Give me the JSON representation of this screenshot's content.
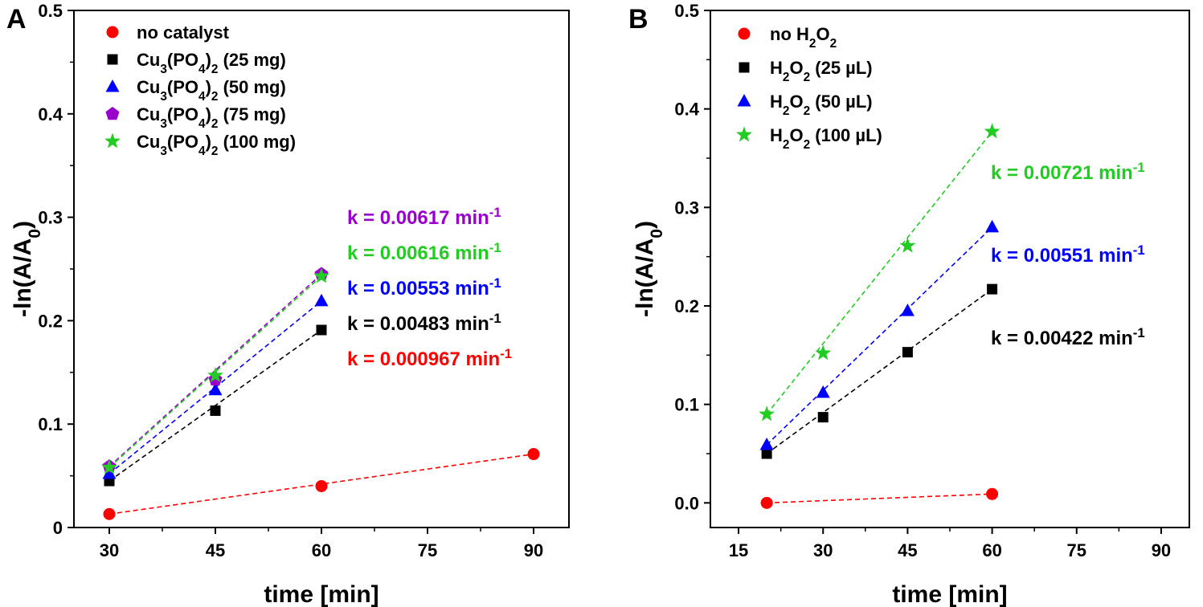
{
  "chart_data": [
    {
      "type": "scatter",
      "panel_label": "A",
      "xlabel": "time [min]",
      "ylabel": "-ln(A/A",
      "ylabel_sub": "0",
      "ylabel_end": ")",
      "xlim": [
        25,
        95
      ],
      "ylim": [
        0,
        0.5
      ],
      "xticks": [
        30,
        45,
        60,
        75,
        90
      ],
      "xtick_labels": [
        "30",
        "45",
        "60",
        "75",
        "90"
      ],
      "yticks": [
        0,
        0.1,
        0.2,
        0.3,
        0.4,
        0.5
      ],
      "ytick_labels": [
        "0",
        "0.1",
        "0.2",
        "0.3",
        "0.4",
        "0.5"
      ],
      "legend_position": "top-left",
      "series": [
        {
          "name": "no catalyst",
          "legend": [
            {
              "t": "no catalyst",
              "sub": false
            }
          ],
          "marker": "circle",
          "color": "#ff0000",
          "x": [
            30,
            60,
            90
          ],
          "y": [
            0.013,
            0.04,
            0.071
          ],
          "fit_x": [
            30,
            90
          ],
          "fit_y": [
            0.013,
            0.071
          ],
          "k_parts": [
            "k = 0.000967 min",
            "-1"
          ]
        },
        {
          "name": "Cu3(PO4)2 (25 mg)",
          "legend": [
            {
              "t": "Cu",
              "sub": false
            },
            {
              "t": "3",
              "sub": true
            },
            {
              "t": "(PO",
              "sub": false
            },
            {
              "t": "4",
              "sub": true
            },
            {
              "t": ")",
              "sub": false
            },
            {
              "t": "2",
              "sub": true
            },
            {
              "t": " (25 mg)",
              "sub": false
            }
          ],
          "marker": "square",
          "color": "#000000",
          "x": [
            30,
            45,
            60
          ],
          "y": [
            0.045,
            0.113,
            0.191
          ],
          "fit_x": [
            30,
            60
          ],
          "fit_y": [
            0.045,
            0.191
          ],
          "k_parts": [
            "k = 0.00483 min",
            "-1"
          ]
        },
        {
          "name": "Cu3(PO4)2 (50 mg)",
          "legend": [
            {
              "t": "Cu",
              "sub": false
            },
            {
              "t": "3",
              "sub": true
            },
            {
              "t": "(PO",
              "sub": false
            },
            {
              "t": "4",
              "sub": true
            },
            {
              "t": ")",
              "sub": false
            },
            {
              "t": "2",
              "sub": true
            },
            {
              "t": " (50 mg)",
              "sub": false
            }
          ],
          "marker": "triangle",
          "color": "#0000ff",
          "x": [
            30,
            45,
            60
          ],
          "y": [
            0.052,
            0.133,
            0.219
          ],
          "fit_x": [
            30,
            60
          ],
          "fit_y": [
            0.052,
            0.219
          ],
          "k_parts": [
            "k = 0.00553 min",
            "-1"
          ]
        },
        {
          "name": "Cu3(PO4)2 (75 mg)",
          "legend": [
            {
              "t": "Cu",
              "sub": false
            },
            {
              "t": "3",
              "sub": true
            },
            {
              "t": "(PO",
              "sub": false
            },
            {
              "t": "4",
              "sub": true
            },
            {
              "t": ")",
              "sub": false
            },
            {
              "t": "2",
              "sub": true
            },
            {
              "t": " (75 mg)",
              "sub": false
            }
          ],
          "marker": "pentagon",
          "color": "#9900cc",
          "x": [
            30,
            45,
            60
          ],
          "y": [
            0.059,
            0.143,
            0.245
          ],
          "fit_x": [
            30,
            60
          ],
          "fit_y": [
            0.059,
            0.245
          ],
          "k_parts": [
            "k = 0.00617 min",
            "-1"
          ]
        },
        {
          "name": "Cu3(PO4)2 (100 mg)",
          "legend": [
            {
              "t": "Cu",
              "sub": false
            },
            {
              "t": "3",
              "sub": true
            },
            {
              "t": "(PO",
              "sub": false
            },
            {
              "t": "4",
              "sub": true
            },
            {
              "t": ")",
              "sub": false
            },
            {
              "t": "2",
              "sub": true
            },
            {
              "t": " (100 mg)",
              "sub": false
            }
          ],
          "marker": "star",
          "color": "#22cc22",
          "x": [
            30,
            45,
            60
          ],
          "y": [
            0.058,
            0.147,
            0.243
          ],
          "fit_x": [
            30,
            60
          ],
          "fit_y": [
            0.058,
            0.243
          ],
          "k_parts": [
            "k = 0.00616 min",
            "-1"
          ]
        }
      ],
      "k_order": [
        3,
        4,
        2,
        1,
        0
      ]
    },
    {
      "type": "scatter",
      "panel_label": "B",
      "xlabel": "time [min]",
      "ylabel": "-ln(A/A",
      "ylabel_sub": "0",
      "ylabel_end": ")",
      "xlim": [
        10,
        95
      ],
      "ylim": [
        -0.025,
        0.5
      ],
      "xticks": [
        15,
        30,
        45,
        60,
        75,
        90
      ],
      "xtick_labels": [
        "15",
        "30",
        "45",
        "60",
        "75",
        "90"
      ],
      "yticks": [
        0,
        0.1,
        0.2,
        0.3,
        0.4,
        0.5
      ],
      "ytick_labels": [
        "0.0",
        "0.1",
        "0.2",
        "0.3",
        "0.4",
        "0.5"
      ],
      "legend_position": "top-left",
      "series": [
        {
          "name": "no H2O2",
          "legend": [
            {
              "t": "no H",
              "sub": false
            },
            {
              "t": "2",
              "sub": true
            },
            {
              "t": "O",
              "sub": false
            },
            {
              "t": "2",
              "sub": true
            }
          ],
          "marker": "circle",
          "color": "#ff0000",
          "x": [
            20,
            60
          ],
          "y": [
            0.0,
            0.009
          ],
          "fit_x": [
            20,
            60
          ],
          "fit_y": [
            0.0,
            0.009
          ],
          "k_parts": null
        },
        {
          "name": "H2O2 (25 uL)",
          "legend": [
            {
              "t": "H",
              "sub": false
            },
            {
              "t": "2",
              "sub": true
            },
            {
              "t": "O",
              "sub": false
            },
            {
              "t": "2",
              "sub": true
            },
            {
              "t": " (25 µL)",
              "sub": false
            }
          ],
          "marker": "square",
          "color": "#000000",
          "x": [
            20,
            30,
            45,
            60
          ],
          "y": [
            0.05,
            0.087,
            0.153,
            0.217
          ],
          "fit_x": [
            20,
            60
          ],
          "fit_y": [
            0.05,
            0.217
          ],
          "k_parts": [
            "k = 0.00422 min",
            "-1"
          ]
        },
        {
          "name": "H2O2 (50 uL)",
          "legend": [
            {
              "t": "H",
              "sub": false
            },
            {
              "t": "2",
              "sub": true
            },
            {
              "t": "O",
              "sub": false
            },
            {
              "t": "2",
              "sub": true
            },
            {
              "t": " (50 µL)",
              "sub": false
            }
          ],
          "marker": "triangle",
          "color": "#0000ff",
          "x": [
            20,
            30,
            45,
            60
          ],
          "y": [
            0.059,
            0.112,
            0.195,
            0.28
          ],
          "fit_x": [
            20,
            60
          ],
          "fit_y": [
            0.059,
            0.28
          ],
          "k_parts": [
            "k = 0.00551 min",
            "-1"
          ]
        },
        {
          "name": "H2O2 (100 uL)",
          "legend": [
            {
              "t": "H",
              "sub": false
            },
            {
              "t": "2",
              "sub": true
            },
            {
              "t": "O",
              "sub": false
            },
            {
              "t": "2",
              "sub": true
            },
            {
              "t": " (100 µL)",
              "sub": false
            }
          ],
          "marker": "star",
          "color": "#22cc22",
          "x": [
            20,
            30,
            45,
            60
          ],
          "y": [
            0.09,
            0.152,
            0.261,
            0.377
          ],
          "fit_x": [
            20,
            60
          ],
          "fit_y": [
            0.09,
            0.377
          ],
          "k_parts": [
            "k = 0.00721 min",
            "-1"
          ]
        }
      ],
      "k_order": [
        3,
        2,
        1
      ]
    }
  ]
}
